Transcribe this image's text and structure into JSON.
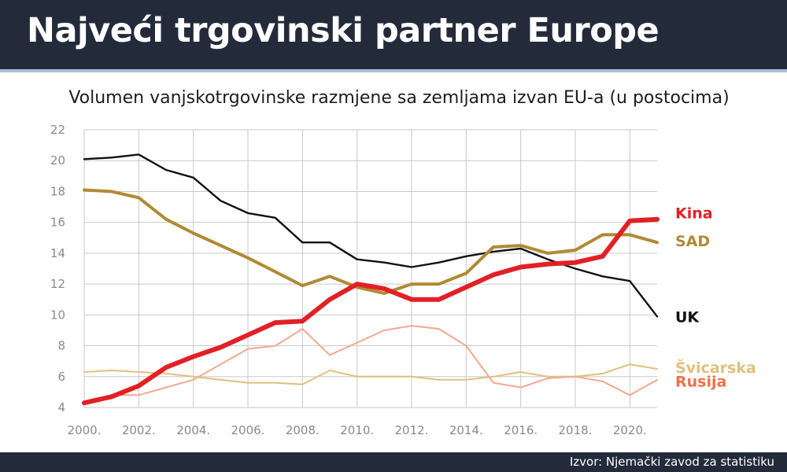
{
  "header": {
    "title": "Najveći trgovinski partner Europe"
  },
  "subtitle": "Volumen vanjskotrgovinske razmjene sa zemljama izvan EU-a (u postocima)",
  "footer": {
    "source": "Izvor: Njemački zavod za statistiku"
  },
  "chart_data": {
    "type": "line",
    "title": "Najveći trgovinski partner Europe",
    "subtitle": "Volumen vanjskotrgovinske razmjene sa zemljama izvan EU-a (u postocima)",
    "x": [
      2000,
      2001,
      2002,
      2003,
      2004,
      2005,
      2006,
      2007,
      2008,
      2009,
      2010,
      2011,
      2012,
      2013,
      2014,
      2015,
      2016,
      2017,
      2018,
      2019,
      2020,
      2021
    ],
    "xticks": [
      2000,
      2002,
      2004,
      2006,
      2008,
      2010,
      2012,
      2014,
      2016,
      2018,
      2020
    ],
    "xtick_labels": [
      "2000.",
      "2002.",
      "2004.",
      "2006.",
      "2008.",
      "2010.",
      "2012.",
      "2014.",
      "2016.",
      "2018.",
      "2020."
    ],
    "xlim": [
      2000,
      2021
    ],
    "ylim": [
      4,
      22
    ],
    "yticks": [
      4,
      6,
      8,
      10,
      12,
      14,
      16,
      18,
      20,
      22
    ],
    "grid": true,
    "legend": "labels at right end of lines",
    "series": [
      {
        "name": "Švicarska",
        "color": "#e0c07e",
        "emphasis": "thin",
        "values": [
          6.3,
          6.4,
          6.3,
          6.2,
          6.0,
          5.8,
          5.6,
          5.6,
          5.5,
          6.4,
          6.0,
          6.0,
          6.0,
          5.8,
          5.8,
          6.0,
          6.3,
          6.0,
          6.0,
          6.2,
          6.8,
          6.5
        ]
      },
      {
        "name": "Rusija",
        "color": "#f3a98f",
        "label_color": "#ef7147",
        "emphasis": "thin",
        "values": [
          4.3,
          4.8,
          4.8,
          5.3,
          5.8,
          6.8,
          7.8,
          8.0,
          9.1,
          7.4,
          8.2,
          9.0,
          9.3,
          9.1,
          8.0,
          5.6,
          5.3,
          5.9,
          6.0,
          5.7,
          4.8,
          5.8
        ]
      },
      {
        "name": "UK",
        "color": "#111111",
        "emphasis": "medium",
        "values": [
          20.1,
          20.2,
          20.4,
          19.4,
          18.9,
          17.4,
          16.6,
          16.3,
          14.7,
          14.7,
          13.6,
          13.4,
          13.1,
          13.4,
          13.8,
          14.1,
          14.3,
          13.6,
          13.0,
          12.5,
          12.2,
          9.9
        ]
      },
      {
        "name": "SAD",
        "color": "#b08a34",
        "emphasis": "thick",
        "values": [
          18.1,
          18.0,
          17.6,
          16.2,
          15.3,
          14.5,
          13.7,
          12.8,
          11.9,
          12.5,
          11.8,
          11.4,
          12.0,
          12.0,
          12.7,
          14.4,
          14.5,
          14.0,
          14.2,
          15.2,
          15.2,
          14.7
        ]
      },
      {
        "name": "Kina",
        "color": "#e22025",
        "emphasis": "thickest",
        "values": [
          4.3,
          4.7,
          5.4,
          6.6,
          7.3,
          7.9,
          8.7,
          9.5,
          9.6,
          11.0,
          12.0,
          11.7,
          11.0,
          11.0,
          11.8,
          12.6,
          13.1,
          13.3,
          13.4,
          13.8,
          16.1,
          16.2
        ]
      }
    ],
    "annotations": [
      {
        "text": "Kina",
        "series": "Kina",
        "value": 16.2,
        "color": "#e22025"
      },
      {
        "text": "SAD",
        "series": "SAD",
        "value": 14.7,
        "color": "#b08a34"
      },
      {
        "text": "UK",
        "series": "UK",
        "value": 9.9,
        "color": "#111111"
      },
      {
        "text": "Švicarska",
        "series": "Švicarska",
        "value": 6.5,
        "color": "#e0c07e"
      },
      {
        "text": "Rusija",
        "series": "Rusija",
        "value": 5.8,
        "color": "#ef7147"
      }
    ]
  }
}
